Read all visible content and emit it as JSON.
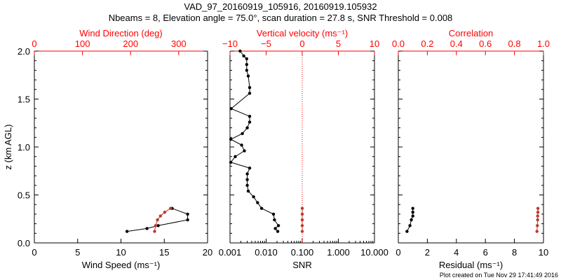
{
  "title_line1": "VAD_97_20160919_105916, 20160919.105932",
  "title_line2": "Nbeams = 8, Elevation angle = 75.0°, scan duration = 27.8 s, SNR Threshold = 0.008",
  "credit": "Plot created on Tue Nov 29 17:41:49 2016",
  "colors": {
    "primary": "#000000",
    "secondary": "#c0392b",
    "top_axis": "#ff0000"
  },
  "chart_data": [
    {
      "type": "line",
      "panel": "wind",
      "ylabel": "z (km AGL)",
      "ylim": [
        0.0,
        2.0
      ],
      "yticks": [
        0.0,
        0.5,
        1.0,
        1.5,
        2.0
      ],
      "ytick_labels": [
        "0.0",
        "0.5",
        "1.0",
        "1.5",
        "2.0"
      ],
      "xlabel": "Wind Speed (ms⁻¹)",
      "xlim": [
        0,
        20
      ],
      "xticks": [
        0,
        5,
        10,
        15,
        20
      ],
      "xtick_labels": [
        "0",
        "5",
        "10",
        "15",
        "20"
      ],
      "top_label": "Wind Direction (deg)",
      "top_xlim": [
        0,
        360
      ],
      "top_ticks": [
        0,
        100,
        200,
        300
      ],
      "top_tick_labels": [
        "0",
        "100",
        "200",
        "300"
      ],
      "series": [
        {
          "axis": "bottom",
          "color": "#000000",
          "x": [
            10.7,
            13.0,
            14.3,
            17.7,
            17.7,
            15.9
          ],
          "y": [
            0.12,
            0.15,
            0.18,
            0.24,
            0.3,
            0.36
          ]
        },
        {
          "axis": "top",
          "color": "#c0392b",
          "x": [
            250,
            252,
            256,
            262,
            271,
            283
          ],
          "y": [
            0.12,
            0.18,
            0.24,
            0.28,
            0.32,
            0.36
          ]
        }
      ]
    },
    {
      "type": "line",
      "panel": "snr",
      "ylim": [
        0.0,
        2.0
      ],
      "xlabel": "SNR",
      "xscale": "log",
      "xlim": [
        0.001,
        10.0
      ],
      "xticks": [
        0.001,
        0.01,
        0.1,
        1.0,
        10.0
      ],
      "xtick_labels": [
        "0.001",
        "0.010",
        "0.100",
        "1.000",
        "10.000"
      ],
      "top_label": "Vertical velocity (ms⁻¹)",
      "top_xlim": [
        -10,
        10
      ],
      "top_ticks": [
        -10,
        -5,
        0,
        5,
        10
      ],
      "top_tick_labels": [
        "−10",
        "−5",
        "0",
        "5",
        "10"
      ],
      "reference_line": {
        "axis": "top",
        "x": 0,
        "style": "dotted"
      },
      "series": [
        {
          "axis": "bottom",
          "color": "#000000",
          "x": [
            0.021,
            0.018,
            0.022,
            0.017,
            0.016,
            0.0075,
            0.0058,
            0.0045,
            0.0032,
            0.003,
            0.003,
            0.003,
            0.0035,
            0.00105,
            0.0014,
            0.0025,
            0.0021,
            0.00105,
            0.0022,
            0.003,
            0.0035,
            0.0035,
            0.00108,
            0.0035,
            0.0035,
            0.0032,
            0.0029,
            0.0029,
            0.0029,
            0.0024,
            0.0019
          ],
          "y": [
            0.12,
            0.15,
            0.18,
            0.24,
            0.3,
            0.36,
            0.42,
            0.48,
            0.54,
            0.6,
            0.66,
            0.72,
            0.78,
            0.84,
            0.9,
            0.96,
            1.02,
            1.08,
            1.14,
            1.2,
            1.26,
            1.32,
            1.4,
            1.56,
            1.62,
            1.74,
            1.8,
            1.86,
            1.92,
            1.95,
            2.0
          ]
        },
        {
          "axis": "bottom",
          "color": "#c0392b",
          "x": [
            0.1,
            0.1,
            0.1,
            0.1,
            0.1
          ],
          "y": [
            0.12,
            0.18,
            0.24,
            0.3,
            0.36
          ]
        }
      ]
    },
    {
      "type": "line",
      "panel": "residual",
      "ylim": [
        0.0,
        2.0
      ],
      "xlabel": "Residual (ms⁻¹)",
      "xlim": [
        0,
        10
      ],
      "xticks": [
        0,
        2,
        4,
        6,
        8,
        10
      ],
      "xtick_labels": [
        "0",
        "2",
        "4",
        "6",
        "8",
        "10"
      ],
      "top_label": "Correlation",
      "top_xlim": [
        0.0,
        1.0
      ],
      "top_ticks": [
        0.0,
        0.2,
        0.4,
        0.6,
        0.8,
        1.0
      ],
      "top_tick_labels": [
        "0.0",
        "0.2",
        "0.4",
        "0.6",
        "0.8",
        "1.0"
      ],
      "series": [
        {
          "axis": "bottom",
          "color": "#000000",
          "x": [
            0.6,
            0.8,
            0.9,
            1.0,
            1.0,
            1.0
          ],
          "y": [
            0.12,
            0.18,
            0.24,
            0.28,
            0.32,
            0.36
          ]
        },
        {
          "axis": "top",
          "color": "#c0392b",
          "x": [
            0.955,
            0.958,
            0.96,
            0.96,
            0.962,
            0.962
          ],
          "y": [
            0.12,
            0.18,
            0.24,
            0.28,
            0.32,
            0.36
          ]
        }
      ]
    }
  ]
}
